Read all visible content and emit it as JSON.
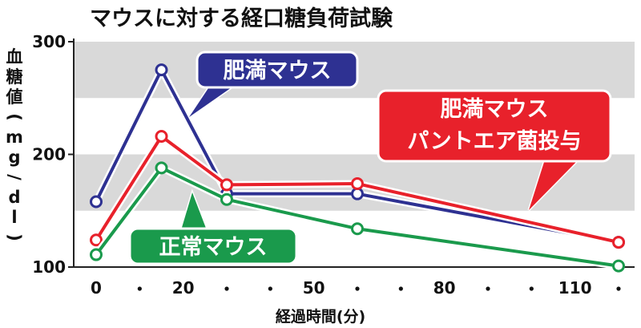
{
  "chart_data": {
    "type": "line",
    "title": "マウスに対する経口糖負荷試験",
    "ylabel_chars": [
      "血",
      "糖",
      "値",
      "(",
      "m",
      "g",
      "/",
      "d",
      "l",
      ")"
    ],
    "xlabel": "経過時間(分)",
    "ylim": [
      100,
      300
    ],
    "xlim": [
      0,
      120
    ],
    "y_ticks": [
      100,
      200,
      300
    ],
    "y_tick_labels": [
      "100",
      "200",
      "300"
    ],
    "x_ticks": [
      0,
      20,
      50,
      80,
      110
    ],
    "x_tick_labels": [
      "0",
      "20",
      "50",
      "80",
      "110"
    ],
    "x_minor_dots": [
      10,
      30,
      40,
      60,
      70,
      90,
      100,
      120
    ],
    "grid_bands": [
      [
        150,
        200
      ],
      [
        250,
        300
      ]
    ],
    "x": [
      0,
      15,
      30,
      60,
      120
    ],
    "series": [
      {
        "name": "肥満マウス",
        "color": "#2e3192",
        "values": [
          158,
          275,
          165,
          165,
          122
        ]
      },
      {
        "name": "肥満マウス\nパントエア菌投与",
        "color": "#e8212b",
        "values": [
          124,
          216,
          173,
          174,
          122
        ]
      },
      {
        "name": "正常マウス",
        "color": "#1a9a4c",
        "values": [
          111,
          188,
          160,
          134,
          101
        ]
      }
    ]
  },
  "callouts": [
    {
      "lines": [
        "肥満マウス"
      ],
      "color": "#2e3192"
    },
    {
      "lines": [
        "肥満マウス",
        "パントエア菌投与"
      ],
      "color": "#e8212b"
    },
    {
      "lines": [
        "正常マウス"
      ],
      "color": "#1a9a4c"
    }
  ]
}
